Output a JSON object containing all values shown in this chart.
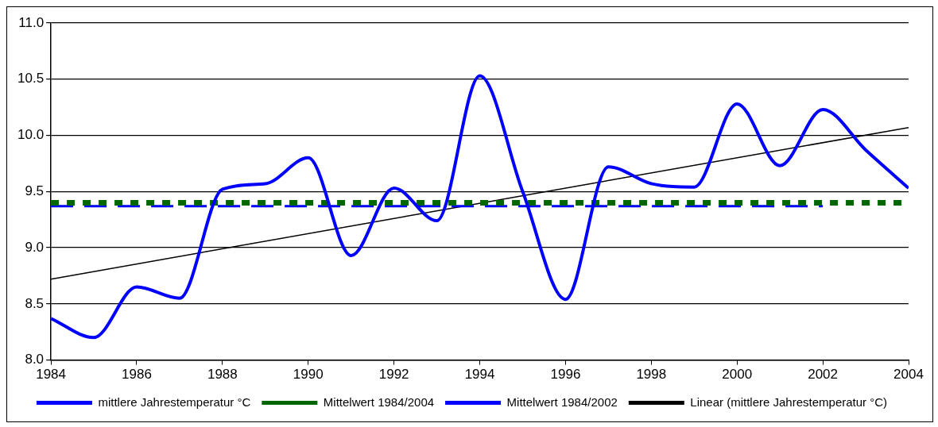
{
  "chart_data": {
    "type": "line",
    "x": [
      1984,
      1985,
      1986,
      1987,
      1988,
      1989,
      1990,
      1991,
      1992,
      1993,
      1994,
      1995,
      1996,
      1997,
      1998,
      1999,
      2000,
      2001,
      2002,
      2003,
      2004
    ],
    "series": [
      {
        "name": "mittlere Jahrestemperatur °C",
        "color": "#0000ff",
        "line_style": "solid",
        "values": [
          8.37,
          8.2,
          8.65,
          8.55,
          9.52,
          9.57,
          9.8,
          8.93,
          9.53,
          9.24,
          10.53,
          9.5,
          8.54,
          9.72,
          9.57,
          9.54,
          10.28,
          9.73,
          10.23,
          9.87,
          9.53
        ]
      },
      {
        "name": "Mittelwert 1984/2004",
        "color": "#006600",
        "line_style": "dotted",
        "x": [
          1984,
          2004
        ],
        "values": [
          9.4,
          9.4
        ]
      },
      {
        "name": "Mittelwert 1984/2002",
        "color": "#0000ff",
        "line_style": "dashed",
        "x": [
          1984,
          2002
        ],
        "values": [
          9.37,
          9.37
        ]
      },
      {
        "name": "Linear (mittlere Jahrestemperatur °C)",
        "color": "#000000",
        "line_style": "solid",
        "x": [
          1984,
          2004
        ],
        "values": [
          8.72,
          10.07
        ]
      }
    ],
    "xlim": [
      1984,
      2004
    ],
    "xticks": [
      1984,
      1986,
      1988,
      1990,
      1992,
      1994,
      1996,
      1998,
      2000,
      2002,
      2004
    ],
    "ylim": [
      8.0,
      11.0
    ],
    "yticks": [
      {
        "value": 8,
        "label": "8.0"
      },
      {
        "value": 8.5,
        "label": "8.5"
      },
      {
        "value": 9,
        "label": "9.0"
      },
      {
        "value": 9.5,
        "label": "9.5"
      },
      {
        "value": 10,
        "label": "10.0"
      },
      {
        "value": 10.5,
        "label": "10.5"
      },
      {
        "value": 11,
        "label": "11.0"
      }
    ],
    "grid": "y",
    "legend": "bottom",
    "marker": "none"
  }
}
